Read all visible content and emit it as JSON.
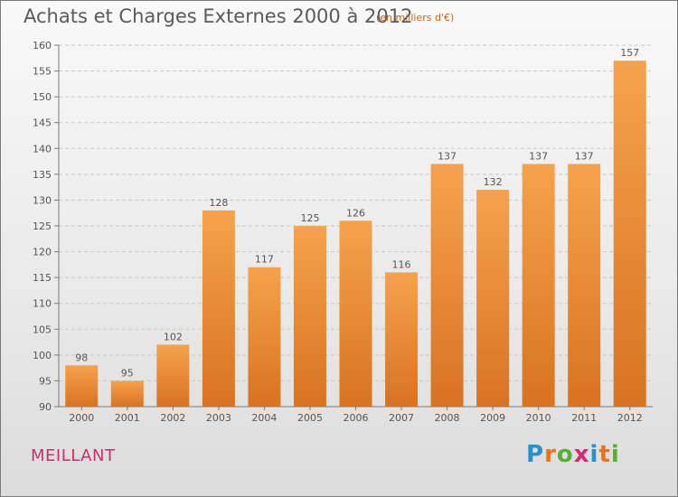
{
  "title": "Achats et Charges Externes 2000 à 2012",
  "subtitle": "(en milliers d'€)",
  "commune": "MEILLANT",
  "logo": {
    "letters": [
      "P",
      "r",
      "o",
      "x",
      "i",
      "t",
      "i"
    ],
    "colors": [
      "#2a8fd0",
      "#e8731c",
      "#56b033",
      "#d42d6e",
      "#2a8fd0",
      "#e8731c",
      "#56b033"
    ]
  },
  "colors": {
    "bar_light": "#f6a24c",
    "bar_dark": "#d8731f",
    "label": "#555555",
    "axis": "#7a7a7a"
  },
  "chart_data": {
    "type": "bar",
    "categories": [
      "2000",
      "2001",
      "2002",
      "2003",
      "2004",
      "2005",
      "2006",
      "2007",
      "2008",
      "2009",
      "2010",
      "2011",
      "2012"
    ],
    "values": [
      98,
      95,
      102,
      128,
      117,
      125,
      126,
      116,
      137,
      132,
      137,
      137,
      157
    ],
    "ylim": [
      90,
      160
    ],
    "yticks": [
      90,
      95,
      100,
      105,
      110,
      115,
      120,
      125,
      130,
      135,
      140,
      145,
      150,
      155,
      160
    ],
    "grid": true
  }
}
